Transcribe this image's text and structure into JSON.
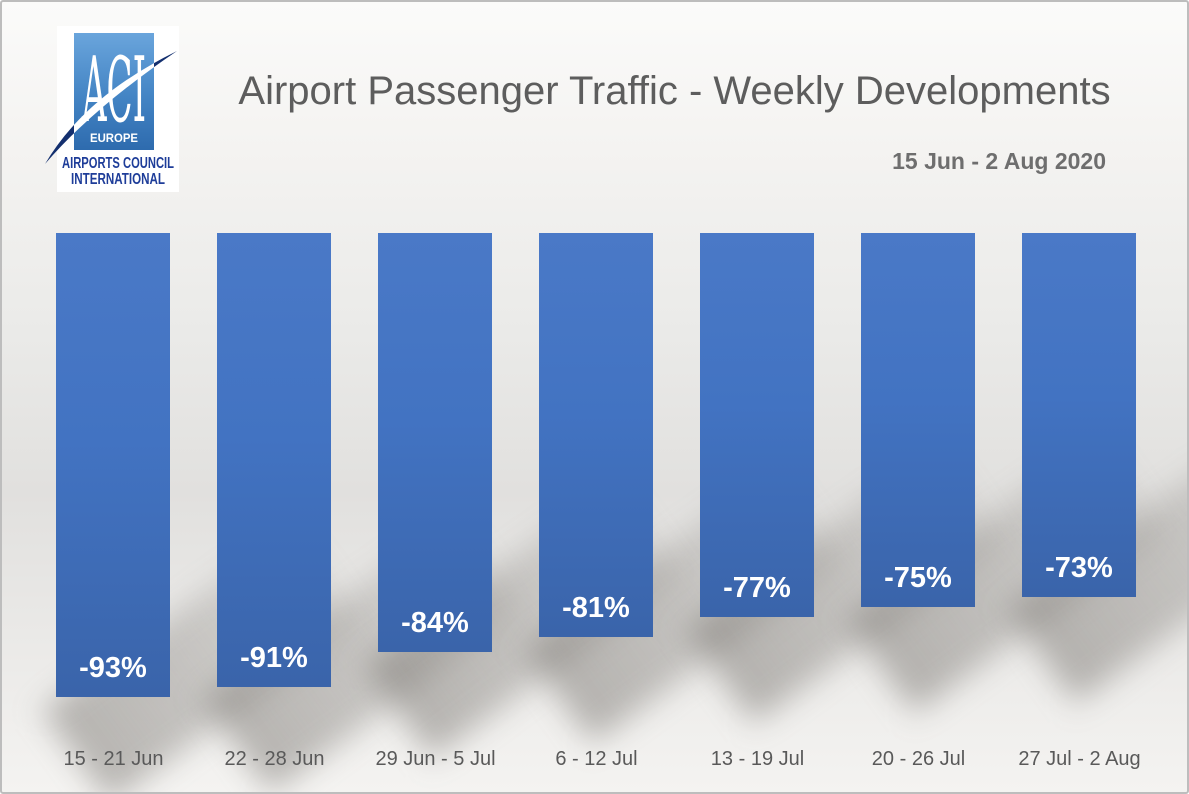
{
  "header": {
    "title": "Airport Passenger Traffic - Weekly Developments",
    "subtitle": "15 Jun - 2 Aug 2020"
  },
  "logo": {
    "acronym": "ACI",
    "region": "EUROPE",
    "org_line1": "AIRPORTS COUNCIL",
    "org_line2": "INTERNATIONAL"
  },
  "chart_data": {
    "type": "bar",
    "title": "Airport Passenger Traffic - Weekly Developments",
    "subtitle": "15 Jun - 2 Aug 2020",
    "categories": [
      "15 - 21 Jun",
      "22 - 28 Jun",
      "29 Jun - 5 Jul",
      "6 - 12 Jul",
      "13 - 19 Jul",
      "20 - 26 Jul",
      "27 Jul - 2 Aug"
    ],
    "values": [
      -93,
      -91,
      -84,
      -81,
      -77,
      -75,
      -73
    ],
    "data_labels": [
      "-93%",
      "-91%",
      "-84%",
      "-81%",
      "-77%",
      "-75%",
      "-73%"
    ],
    "xlabel": "",
    "ylabel": "",
    "ylim": [
      -100,
      0
    ],
    "grid": false,
    "legend_position": "none",
    "bar_color_top": "#4a79c7",
    "bar_color_bottom": "#3a64aa",
    "data_label_color": "#ffffff",
    "axis_text_color": "#595959",
    "title_color": "#5d5d5d"
  }
}
